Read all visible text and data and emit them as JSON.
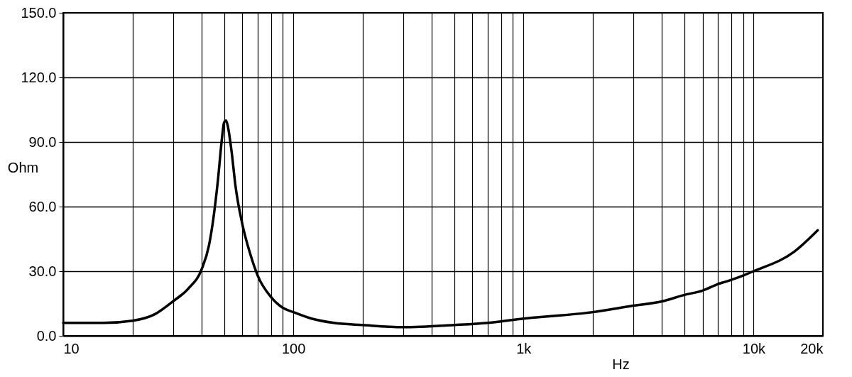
{
  "chart_data": {
    "type": "line",
    "xlabel": "Hz",
    "ylabel": "Ohm",
    "log": "x",
    "grid": true,
    "xlim": [
      10,
      20000
    ],
    "ylim": [
      0,
      150
    ],
    "xticks": [
      {
        "value": 10,
        "label": "10"
      },
      {
        "value": 20,
        "label": null
      },
      {
        "value": 30,
        "label": null
      },
      {
        "value": 40,
        "label": null
      },
      {
        "value": 50,
        "label": null
      },
      {
        "value": 60,
        "label": null
      },
      {
        "value": 70,
        "label": null
      },
      {
        "value": 80,
        "label": null
      },
      {
        "value": 90,
        "label": null
      },
      {
        "value": 100,
        "label": "100"
      },
      {
        "value": 200,
        "label": null
      },
      {
        "value": 300,
        "label": null
      },
      {
        "value": 400,
        "label": null
      },
      {
        "value": 500,
        "label": null
      },
      {
        "value": 600,
        "label": null
      },
      {
        "value": 700,
        "label": null
      },
      {
        "value": 800,
        "label": null
      },
      {
        "value": 900,
        "label": null
      },
      {
        "value": 1000,
        "label": "1k"
      },
      {
        "value": 2000,
        "label": null
      },
      {
        "value": 3000,
        "label": null
      },
      {
        "value": 4000,
        "label": null
      },
      {
        "value": 5000,
        "label": null
      },
      {
        "value": 6000,
        "label": null
      },
      {
        "value": 7000,
        "label": null
      },
      {
        "value": 8000,
        "label": null
      },
      {
        "value": 9000,
        "label": null
      },
      {
        "value": 10000,
        "label": "10k"
      },
      {
        "value": 20000,
        "label": "20k"
      }
    ],
    "yticks": [
      {
        "value": 0,
        "label": "0.0"
      },
      {
        "value": 30,
        "label": "30.0"
      },
      {
        "value": 60,
        "label": "60.0"
      },
      {
        "value": 90,
        "label": "90.0"
      },
      {
        "value": 120,
        "label": "120.0"
      },
      {
        "value": 150,
        "label": "150.0"
      }
    ],
    "x": [
      10,
      15,
      20,
      25,
      30,
      35,
      40,
      43,
      45,
      47,
      49,
      50,
      51,
      52,
      54,
      56,
      60,
      65,
      70,
      80,
      90,
      100,
      120,
      150,
      200,
      300,
      500,
      700,
      1000,
      2000,
      3000,
      4000,
      5000,
      6000,
      7000,
      8000,
      9000,
      10000,
      15000,
      19000
    ],
    "series": [
      {
        "color": "#000000",
        "values": [
          6,
          6,
          7,
          10,
          16,
          22,
          31,
          42,
          55,
          72,
          92,
          99,
          100,
          97,
          85,
          70,
          52,
          38,
          28,
          18,
          13,
          11,
          8,
          6,
          5,
          4,
          5,
          6,
          8,
          11,
          14,
          16,
          19,
          21,
          24,
          26,
          28,
          30,
          39,
          49
        ]
      }
    ]
  }
}
